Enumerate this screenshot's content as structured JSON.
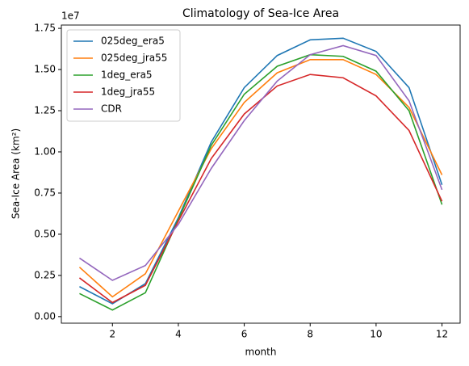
{
  "chart_data": {
    "type": "line",
    "title": "Climatology of Sea-Ice Area",
    "xlabel": "month",
    "ylabel": "Sea-Ice Area (km²)",
    "y_offset_label": "1e7",
    "x": [
      1,
      2,
      3,
      4,
      5,
      6,
      7,
      8,
      9,
      10,
      11,
      12
    ],
    "series": [
      {
        "name": "025deg_era5",
        "color": "#1f77b4",
        "values": [
          0.182,
          0.078,
          0.2,
          0.6,
          1.06,
          1.39,
          1.585,
          1.68,
          1.69,
          1.61,
          1.39,
          0.8
        ]
      },
      {
        "name": "025deg_jra55",
        "color": "#ff7f0e",
        "values": [
          0.3,
          0.12,
          0.26,
          0.64,
          1.02,
          1.3,
          1.48,
          1.56,
          1.56,
          1.47,
          1.27,
          0.86
        ]
      },
      {
        "name": "1deg_era5",
        "color": "#2ca02c",
        "values": [
          0.14,
          0.04,
          0.145,
          0.59,
          1.04,
          1.35,
          1.52,
          1.59,
          1.58,
          1.49,
          1.25,
          0.68
        ]
      },
      {
        "name": "1deg_jra55",
        "color": "#d62728",
        "values": [
          0.235,
          0.085,
          0.19,
          0.58,
          0.96,
          1.23,
          1.4,
          1.47,
          1.45,
          1.34,
          1.13,
          0.7
        ]
      },
      {
        "name": "CDR",
        "color": "#9467bd",
        "values": [
          0.355,
          0.22,
          0.31,
          0.56,
          0.9,
          1.19,
          1.43,
          1.59,
          1.645,
          1.585,
          1.31,
          0.77
        ]
      }
    ],
    "xlim": [
      0.45,
      12.55
    ],
    "xticks": [
      2,
      4,
      6,
      8,
      10,
      12
    ],
    "ylim": [
      -0.04,
      1.77
    ],
    "yticks": [
      {
        "value": 0,
        "label": "0.00"
      },
      0.25,
      {
        "value": 0.5,
        "label": "0.50"
      },
      0.75,
      {
        "value": 1,
        "label": "1.00"
      },
      1.25,
      {
        "value": 1.5,
        "label": "1.50"
      },
      1.75
    ],
    "legend": "upper left",
    "grid": false
  }
}
